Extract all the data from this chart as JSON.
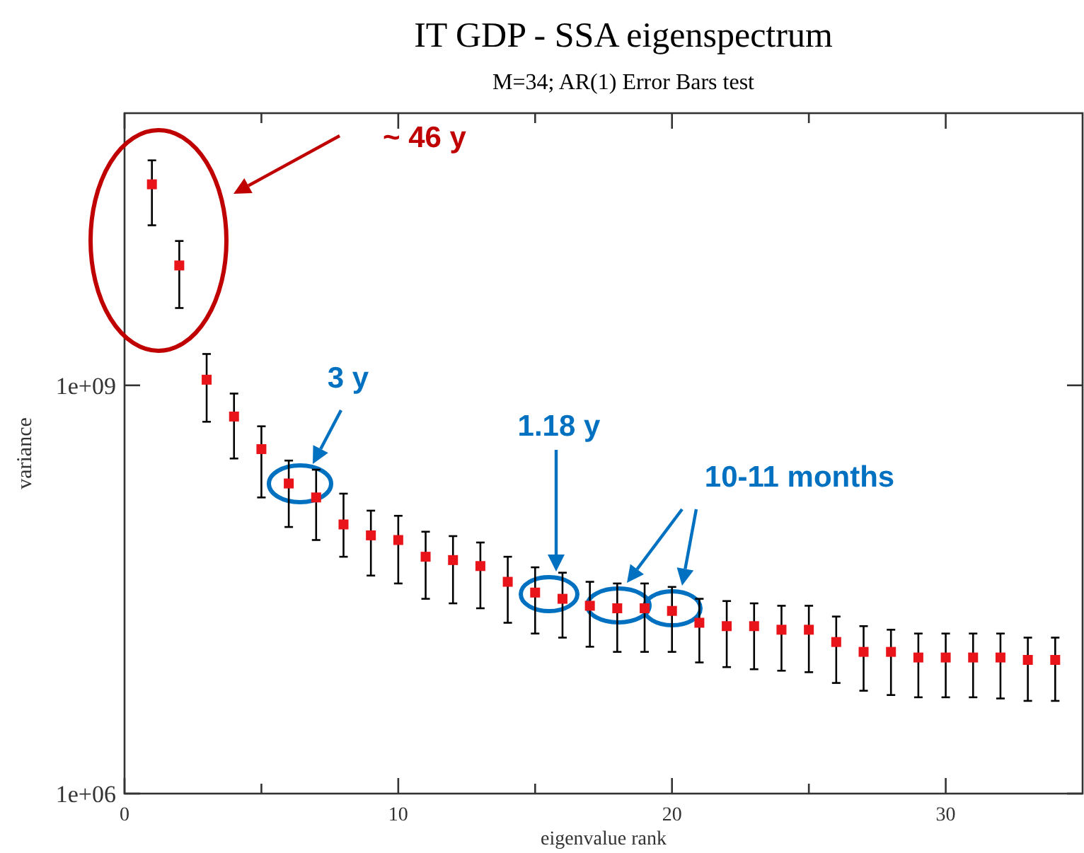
{
  "chart_data": {
    "type": "scatter",
    "title": "IT GDP - SSA eigenspectrum",
    "subtitle": "M=34; AR(1) Error Bars test",
    "xlabel": "eigenvalue rank",
    "ylabel": "variance",
    "x": [
      1,
      2,
      3,
      4,
      5,
      6,
      7,
      8,
      9,
      10,
      11,
      12,
      13,
      14,
      15,
      16,
      17,
      18,
      19,
      20,
      21,
      22,
      23,
      24,
      25,
      26,
      27,
      28,
      29,
      30,
      31,
      32,
      33,
      34
    ],
    "series": [
      {
        "color": "#e8141a",
        "values": [
          30000000000.0,
          7600000000.0,
          1100000000.0,
          590000000.0,
          340000000.0,
          190000000.0,
          150000000.0,
          95000000.0,
          79000000.0,
          73000000.0,
          55000000.0,
          52000000.0,
          47000000.0,
          36000000.0,
          30000000.0,
          27000000.0,
          24000000.0,
          23000000.0,
          23000000.0,
          22000000.0,
          18000000.0,
          17000000.0,
          17000000.0,
          16000000.0,
          16000000.0,
          13000000.0,
          11000000.0,
          11000000.0,
          10000000.0,
          10000000.0,
          10000000.0,
          10000000.0,
          9600000.0,
          9600000.0
        ],
        "errors": [
          [
            15000000000.0,
            45000000000.0
          ],
          [
            3700000000.0,
            11500000000.0
          ],
          [
            540000000.0,
            1700000000.0
          ],
          [
            290000000.0,
            870000000.0
          ],
          [
            150000000.0,
            500000000.0
          ],
          [
            91000000.0,
            280000000.0
          ],
          [
            73000000.0,
            240000000.0
          ],
          [
            55000000.0,
            160000000.0
          ],
          [
            40000000.0,
            120000000.0
          ],
          [
            35000000.0,
            110000000.0
          ],
          [
            27000000.0,
            84000000.0
          ],
          [
            25000000.0,
            78000000.0
          ],
          [
            23000000.0,
            70000000.0
          ],
          [
            18000000.0,
            55000000.0
          ],
          [
            15000000.0,
            46000000.0
          ],
          [
            14000000.0,
            42000000.0
          ],
          [
            12000000.0,
            36000000.0
          ],
          [
            11000000.0,
            35000000.0
          ],
          [
            11000000.0,
            35000000.0
          ],
          [
            11000000.0,
            33000000.0
          ],
          [
            9200000.0,
            27000000.0
          ],
          [
            8500000.0,
            26000000.0
          ],
          [
            8200000.0,
            25000000.0
          ],
          [
            8000000.0,
            24000000.0
          ],
          [
            7800000.0,
            24000000.0
          ],
          [
            6500000.0,
            20000000.0
          ],
          [
            5700000.0,
            17000000.0
          ],
          [
            5300000.0,
            16000000.0
          ],
          [
            5100000.0,
            15000000.0
          ],
          [
            5100000.0,
            15000000.0
          ],
          [
            5100000.0,
            15000000.0
          ],
          [
            5000000.0,
            15000000.0
          ],
          [
            4800000.0,
            14000000.0
          ],
          [
            4800000.0,
            14000000.0
          ]
        ]
      }
    ],
    "marker": "square",
    "log": "y",
    "grid": false,
    "xlim": [
      0,
      35
    ],
    "xticks": [
      0,
      {
        "value": 5,
        "label": null
      },
      10,
      {
        "value": 15,
        "label": null
      },
      20,
      {
        "value": 25,
        "label": null
      },
      30
    ],
    "ylim": [
      1000000.0,
      100000000000.0
    ],
    "yticks": [
      {
        "value": 1000000.0,
        "label": "1e+06"
      },
      {
        "value": 1000000000.0,
        "label": "1e+09"
      }
    ],
    "annotations": [
      "~ 46 y",
      "3 y",
      "1.18 y",
      "10-11 months"
    ]
  }
}
